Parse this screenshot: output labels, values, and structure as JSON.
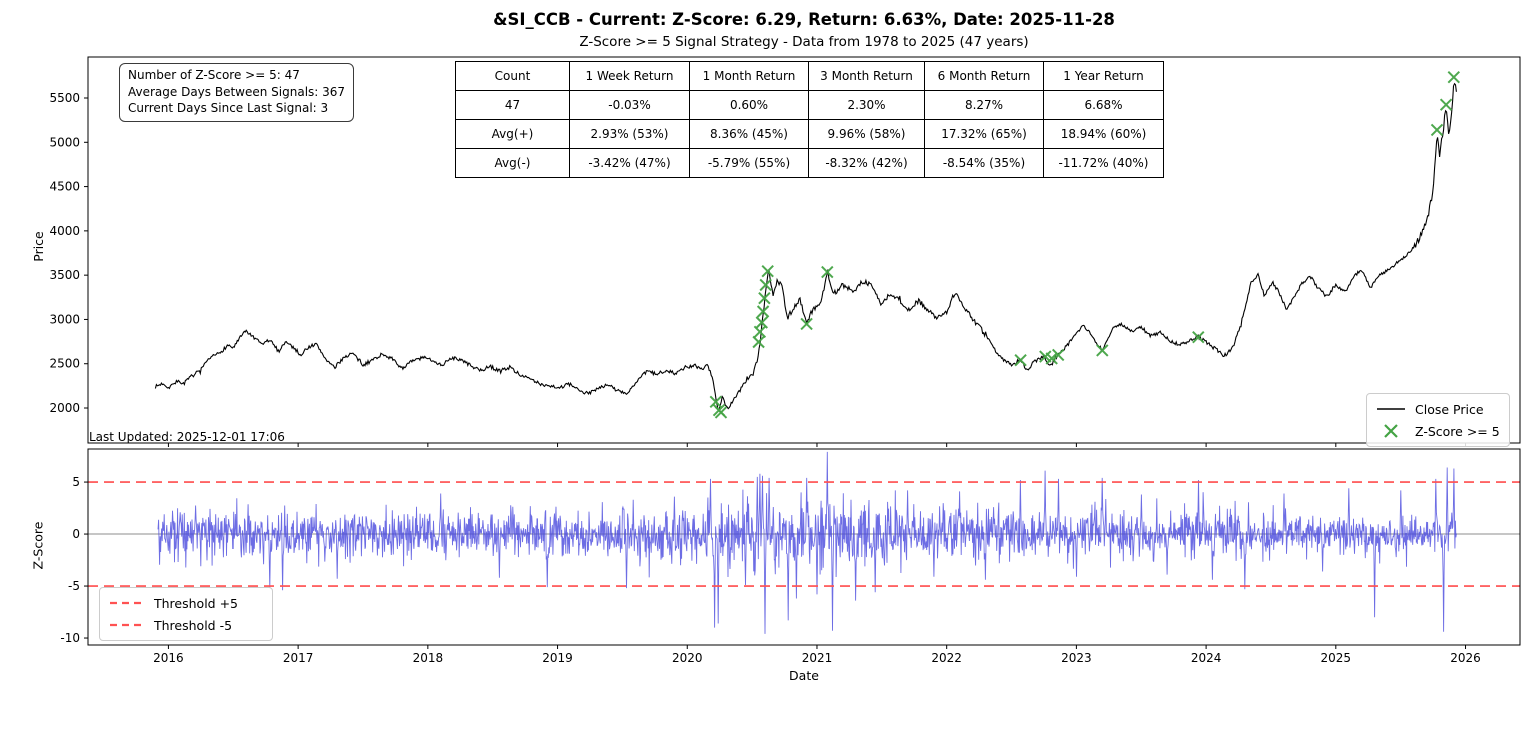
{
  "title": "&SI_CCB - Current: Z-Score: 6.29, Return: 6.63%, Date: 2025-11-28",
  "subtitle": "Z-Score >= 5 Signal Strategy - Data from 1978 to 2025 (47 years)",
  "last_updated": "Last Updated: 2025-12-01 17:06",
  "stats_box": {
    "line1": "Number of Z-Score >= 5: 47",
    "line2": "Average Days Between Signals: 367",
    "line3": "Current Days Since Last Signal: 3"
  },
  "table": {
    "headers": [
      "Count",
      "1 Week Return",
      "1 Month Return",
      "3 Month Return",
      "6 Month Return",
      "1 Year Return"
    ],
    "rows": [
      [
        "47",
        "-0.03%",
        "0.60%",
        "2.30%",
        "8.27%",
        "6.68%"
      ],
      [
        "Avg(+)",
        "2.93% (53%)",
        "8.36% (45%)",
        "9.96% (58%)",
        "17.32% (65%)",
        "18.94% (60%)"
      ],
      [
        "Avg(-)",
        "-3.42% (47%)",
        "-5.79% (55%)",
        "-8.32% (42%)",
        "-8.54% (35%)",
        "-11.72% (40%)"
      ]
    ]
  },
  "price_legend": {
    "close_price": "Close Price",
    "signal": "Z-Score >= 5"
  },
  "zscore_legend": {
    "upper": "Threshold +5",
    "lower": "Threshold -5"
  },
  "colors": {
    "price_line": "#000000",
    "signal_green": "#44a344",
    "zscore_blue": "#4848dd",
    "threshold_red": "#ff5252",
    "zero_gray": "#b3b3b3",
    "spine": "#000000"
  },
  "chart_data": [
    {
      "type": "line",
      "panel": "price",
      "ylabel": "Price",
      "xlabel": "",
      "legend_position": "lower right",
      "grid": false,
      "xlim": [
        2015.38,
        2026.42
      ],
      "ylim": [
        1605,
        5963
      ],
      "x_ticks": [
        2016,
        2017,
        2018,
        2019,
        2020,
        2021,
        2022,
        2023,
        2024,
        2025,
        2026
      ],
      "y_ticks": [
        2000,
        2500,
        3000,
        3500,
        4000,
        4500,
        5000,
        5500
      ],
      "series": [
        {
          "name": "Close Price",
          "anchor_points": [
            [
              2015.9,
              2240
            ],
            [
              2015.96,
              2280
            ],
            [
              2016.0,
              2230
            ],
            [
              2016.06,
              2300
            ],
            [
              2016.12,
              2280
            ],
            [
              2016.18,
              2360
            ],
            [
              2016.25,
              2430
            ],
            [
              2016.32,
              2560
            ],
            [
              2016.4,
              2630
            ],
            [
              2016.46,
              2710
            ],
            [
              2016.5,
              2680
            ],
            [
              2016.56,
              2810
            ],
            [
              2016.6,
              2870
            ],
            [
              2016.66,
              2790
            ],
            [
              2016.72,
              2720
            ],
            [
              2016.78,
              2770
            ],
            [
              2016.85,
              2640
            ],
            [
              2016.9,
              2750
            ],
            [
              2016.96,
              2690
            ],
            [
              2017.02,
              2600
            ],
            [
              2017.08,
              2690
            ],
            [
              2017.14,
              2720
            ],
            [
              2017.21,
              2560
            ],
            [
              2017.28,
              2450
            ],
            [
              2017.35,
              2570
            ],
            [
              2017.42,
              2620
            ],
            [
              2017.5,
              2480
            ],
            [
              2017.58,
              2550
            ],
            [
              2017.65,
              2610
            ],
            [
              2017.72,
              2560
            ],
            [
              2017.8,
              2450
            ],
            [
              2017.88,
              2530
            ],
            [
              2017.96,
              2570
            ],
            [
              2018.04,
              2540
            ],
            [
              2018.11,
              2480
            ],
            [
              2018.18,
              2570
            ],
            [
              2018.26,
              2540
            ],
            [
              2018.33,
              2480
            ],
            [
              2018.4,
              2420
            ],
            [
              2018.48,
              2470
            ],
            [
              2018.55,
              2420
            ],
            [
              2018.63,
              2460
            ],
            [
              2018.71,
              2380
            ],
            [
              2018.79,
              2320
            ],
            [
              2018.87,
              2270
            ],
            [
              2018.95,
              2250
            ],
            [
              2019.02,
              2230
            ],
            [
              2019.09,
              2270
            ],
            [
              2019.16,
              2200
            ],
            [
              2019.24,
              2160
            ],
            [
              2019.31,
              2230
            ],
            [
              2019.39,
              2260
            ],
            [
              2019.46,
              2200
            ],
            [
              2019.53,
              2160
            ],
            [
              2019.61,
              2290
            ],
            [
              2019.69,
              2420
            ],
            [
              2019.76,
              2380
            ],
            [
              2019.84,
              2430
            ],
            [
              2019.91,
              2390
            ],
            [
              2019.98,
              2450
            ],
            [
              2020.06,
              2480
            ],
            [
              2020.11,
              2430
            ],
            [
              2020.16,
              2500
            ],
            [
              2020.2,
              2310
            ],
            [
              2020.24,
              1950
            ],
            [
              2020.27,
              2130
            ],
            [
              2020.31,
              1990
            ],
            [
              2020.35,
              2080
            ],
            [
              2020.41,
              2210
            ],
            [
              2020.46,
              2330
            ],
            [
              2020.51,
              2390
            ],
            [
              2020.55,
              2600
            ],
            [
              2020.58,
              3000
            ],
            [
              2020.61,
              3400
            ],
            [
              2020.63,
              3560
            ],
            [
              2020.66,
              3260
            ],
            [
              2020.69,
              3430
            ],
            [
              2020.73,
              3390
            ],
            [
              2020.77,
              3010
            ],
            [
              2020.82,
              3130
            ],
            [
              2020.87,
              3230
            ],
            [
              2020.92,
              2960
            ],
            [
              2020.97,
              3110
            ],
            [
              2021.03,
              3190
            ],
            [
              2021.08,
              3540
            ],
            [
              2021.13,
              3290
            ],
            [
              2021.2,
              3390
            ],
            [
              2021.28,
              3310
            ],
            [
              2021.35,
              3430
            ],
            [
              2021.42,
              3390
            ],
            [
              2021.5,
              3160
            ],
            [
              2021.56,
              3290
            ],
            [
              2021.63,
              3230
            ],
            [
              2021.7,
              3090
            ],
            [
              2021.78,
              3210
            ],
            [
              2021.86,
              3110
            ],
            [
              2021.93,
              3010
            ],
            [
              2022.0,
              3090
            ],
            [
              2022.06,
              3300
            ],
            [
              2022.13,
              3160
            ],
            [
              2022.2,
              3010
            ],
            [
              2022.28,
              2860
            ],
            [
              2022.35,
              2710
            ],
            [
              2022.42,
              2560
            ],
            [
              2022.5,
              2490
            ],
            [
              2022.57,
              2545
            ],
            [
              2022.62,
              2430
            ],
            [
              2022.68,
              2530
            ],
            [
              2022.75,
              2585
            ],
            [
              2022.8,
              2470
            ],
            [
              2022.86,
              2605
            ],
            [
              2022.93,
              2710
            ],
            [
              2023.0,
              2860
            ],
            [
              2023.06,
              2930
            ],
            [
              2023.13,
              2790
            ],
            [
              2023.2,
              2655
            ],
            [
              2023.28,
              2890
            ],
            [
              2023.35,
              2950
            ],
            [
              2023.43,
              2860
            ],
            [
              2023.5,
              2910
            ],
            [
              2023.58,
              2810
            ],
            [
              2023.65,
              2860
            ],
            [
              2023.72,
              2760
            ],
            [
              2023.8,
              2710
            ],
            [
              2023.87,
              2760
            ],
            [
              2023.94,
              2805
            ],
            [
              2024.01,
              2730
            ],
            [
              2024.08,
              2660
            ],
            [
              2024.14,
              2590
            ],
            [
              2024.21,
              2690
            ],
            [
              2024.28,
              3010
            ],
            [
              2024.35,
              3430
            ],
            [
              2024.4,
              3510
            ],
            [
              2024.45,
              3260
            ],
            [
              2024.51,
              3430
            ],
            [
              2024.56,
              3310
            ],
            [
              2024.62,
              3110
            ],
            [
              2024.68,
              3260
            ],
            [
              2024.74,
              3410
            ],
            [
              2024.8,
              3490
            ],
            [
              2024.86,
              3360
            ],
            [
              2024.93,
              3260
            ],
            [
              2025.0,
              3390
            ],
            [
              2025.07,
              3310
            ],
            [
              2025.14,
              3490
            ],
            [
              2025.2,
              3560
            ],
            [
              2025.27,
              3360
            ],
            [
              2025.34,
              3510
            ],
            [
              2025.41,
              3560
            ],
            [
              2025.48,
              3660
            ],
            [
              2025.54,
              3710
            ],
            [
              2025.6,
              3810
            ],
            [
              2025.66,
              3960
            ],
            [
              2025.71,
              4160
            ],
            [
              2025.75,
              4450
            ],
            [
              2025.78,
              5110
            ],
            [
              2025.8,
              4860
            ],
            [
              2025.83,
              5160
            ],
            [
              2025.85,
              5430
            ],
            [
              2025.87,
              5060
            ],
            [
              2025.89,
              5260
            ],
            [
              2025.91,
              5730
            ],
            [
              2025.93,
              5570
            ]
          ]
        }
      ],
      "signal_markers": {
        "name": "Z-Score >= 5",
        "marker": "x",
        "points": [
          [
            2020.22,
            2070
          ],
          [
            2020.245,
            1975
          ],
          [
            2020.26,
            1950
          ],
          [
            2020.55,
            2745
          ],
          [
            2020.56,
            2860
          ],
          [
            2020.575,
            2965
          ],
          [
            2020.585,
            3090
          ],
          [
            2020.595,
            3240
          ],
          [
            2020.605,
            3390
          ],
          [
            2020.62,
            3545
          ],
          [
            2020.92,
            2950
          ],
          [
            2021.08,
            3535
          ],
          [
            2022.57,
            2540
          ],
          [
            2022.76,
            2580
          ],
          [
            2022.81,
            2560
          ],
          [
            2022.86,
            2600
          ],
          [
            2023.2,
            2650
          ],
          [
            2023.94,
            2800
          ],
          [
            2025.78,
            5140
          ],
          [
            2025.85,
            5425
          ],
          [
            2025.91,
            5735
          ]
        ]
      }
    },
    {
      "type": "line",
      "panel": "zscore",
      "ylabel": "Z-Score",
      "xlabel": "Date",
      "grid": false,
      "xlim": [
        2015.38,
        2026.42
      ],
      "ylim": [
        -10.67,
        8.18
      ],
      "x_ticks": [
        2016,
        2017,
        2018,
        2019,
        2020,
        2021,
        2022,
        2023,
        2024,
        2025,
        2026
      ],
      "y_ticks": [
        -10,
        -5,
        0,
        5
      ],
      "thresholds": [
        5,
        -5
      ],
      "zero_line": 0,
      "noise_model": {
        "seed": 42,
        "start": 2015.92,
        "end": 2025.93,
        "points_per_year": 252,
        "std_segments": [
          [
            2015.92,
            1.15
          ],
          [
            2019.6,
            1.3
          ],
          [
            2020.05,
            1.7
          ],
          [
            2021.7,
            1.3
          ],
          [
            2022.3,
            1.15
          ],
          [
            2024.3,
            0.95
          ]
        ]
      },
      "spikes": [
        [
          2016.78,
          -5.2
        ],
        [
          2016.88,
          -5.4
        ],
        [
          2017.3,
          -4.3
        ],
        [
          2018.1,
          3.9
        ],
        [
          2018.55,
          -4.2
        ],
        [
          2018.92,
          -5.1
        ],
        [
          2019.53,
          -5.2
        ],
        [
          2019.9,
          3.6
        ],
        [
          2020.18,
          5.3
        ],
        [
          2020.21,
          -9.0
        ],
        [
          2020.24,
          -8.6
        ],
        [
          2020.45,
          -4.9
        ],
        [
          2020.54,
          5.5
        ],
        [
          2020.56,
          5.8
        ],
        [
          2020.58,
          5.6
        ],
        [
          2020.6,
          -9.6
        ],
        [
          2020.63,
          5.4
        ],
        [
          2020.78,
          -8.3
        ],
        [
          2020.84,
          -6.2
        ],
        [
          2020.92,
          5.4
        ],
        [
          2021.0,
          -5.8
        ],
        [
          2021.08,
          7.9
        ],
        [
          2021.12,
          -9.3
        ],
        [
          2021.3,
          -6.4
        ],
        [
          2021.45,
          -5.6
        ],
        [
          2021.7,
          4.2
        ],
        [
          2021.9,
          -4.1
        ],
        [
          2022.1,
          4.1
        ],
        [
          2022.3,
          -4.4
        ],
        [
          2022.57,
          5.2
        ],
        [
          2022.76,
          6.1
        ],
        [
          2022.86,
          5.3
        ],
        [
          2023.0,
          -4.1
        ],
        [
          2023.2,
          5.4
        ],
        [
          2023.5,
          3.8
        ],
        [
          2023.7,
          -3.9
        ],
        [
          2023.94,
          5.2
        ],
        [
          2024.05,
          -4.4
        ],
        [
          2024.3,
          -5.3
        ],
        [
          2024.6,
          3.9
        ],
        [
          2024.9,
          -3.6
        ],
        [
          2025.1,
          4.4
        ],
        [
          2025.3,
          -8.0
        ],
        [
          2025.5,
          4.2
        ],
        [
          2025.77,
          5.3
        ],
        [
          2025.83,
          -9.4
        ],
        [
          2025.86,
          6.4
        ],
        [
          2025.91,
          6.3
        ]
      ]
    }
  ]
}
